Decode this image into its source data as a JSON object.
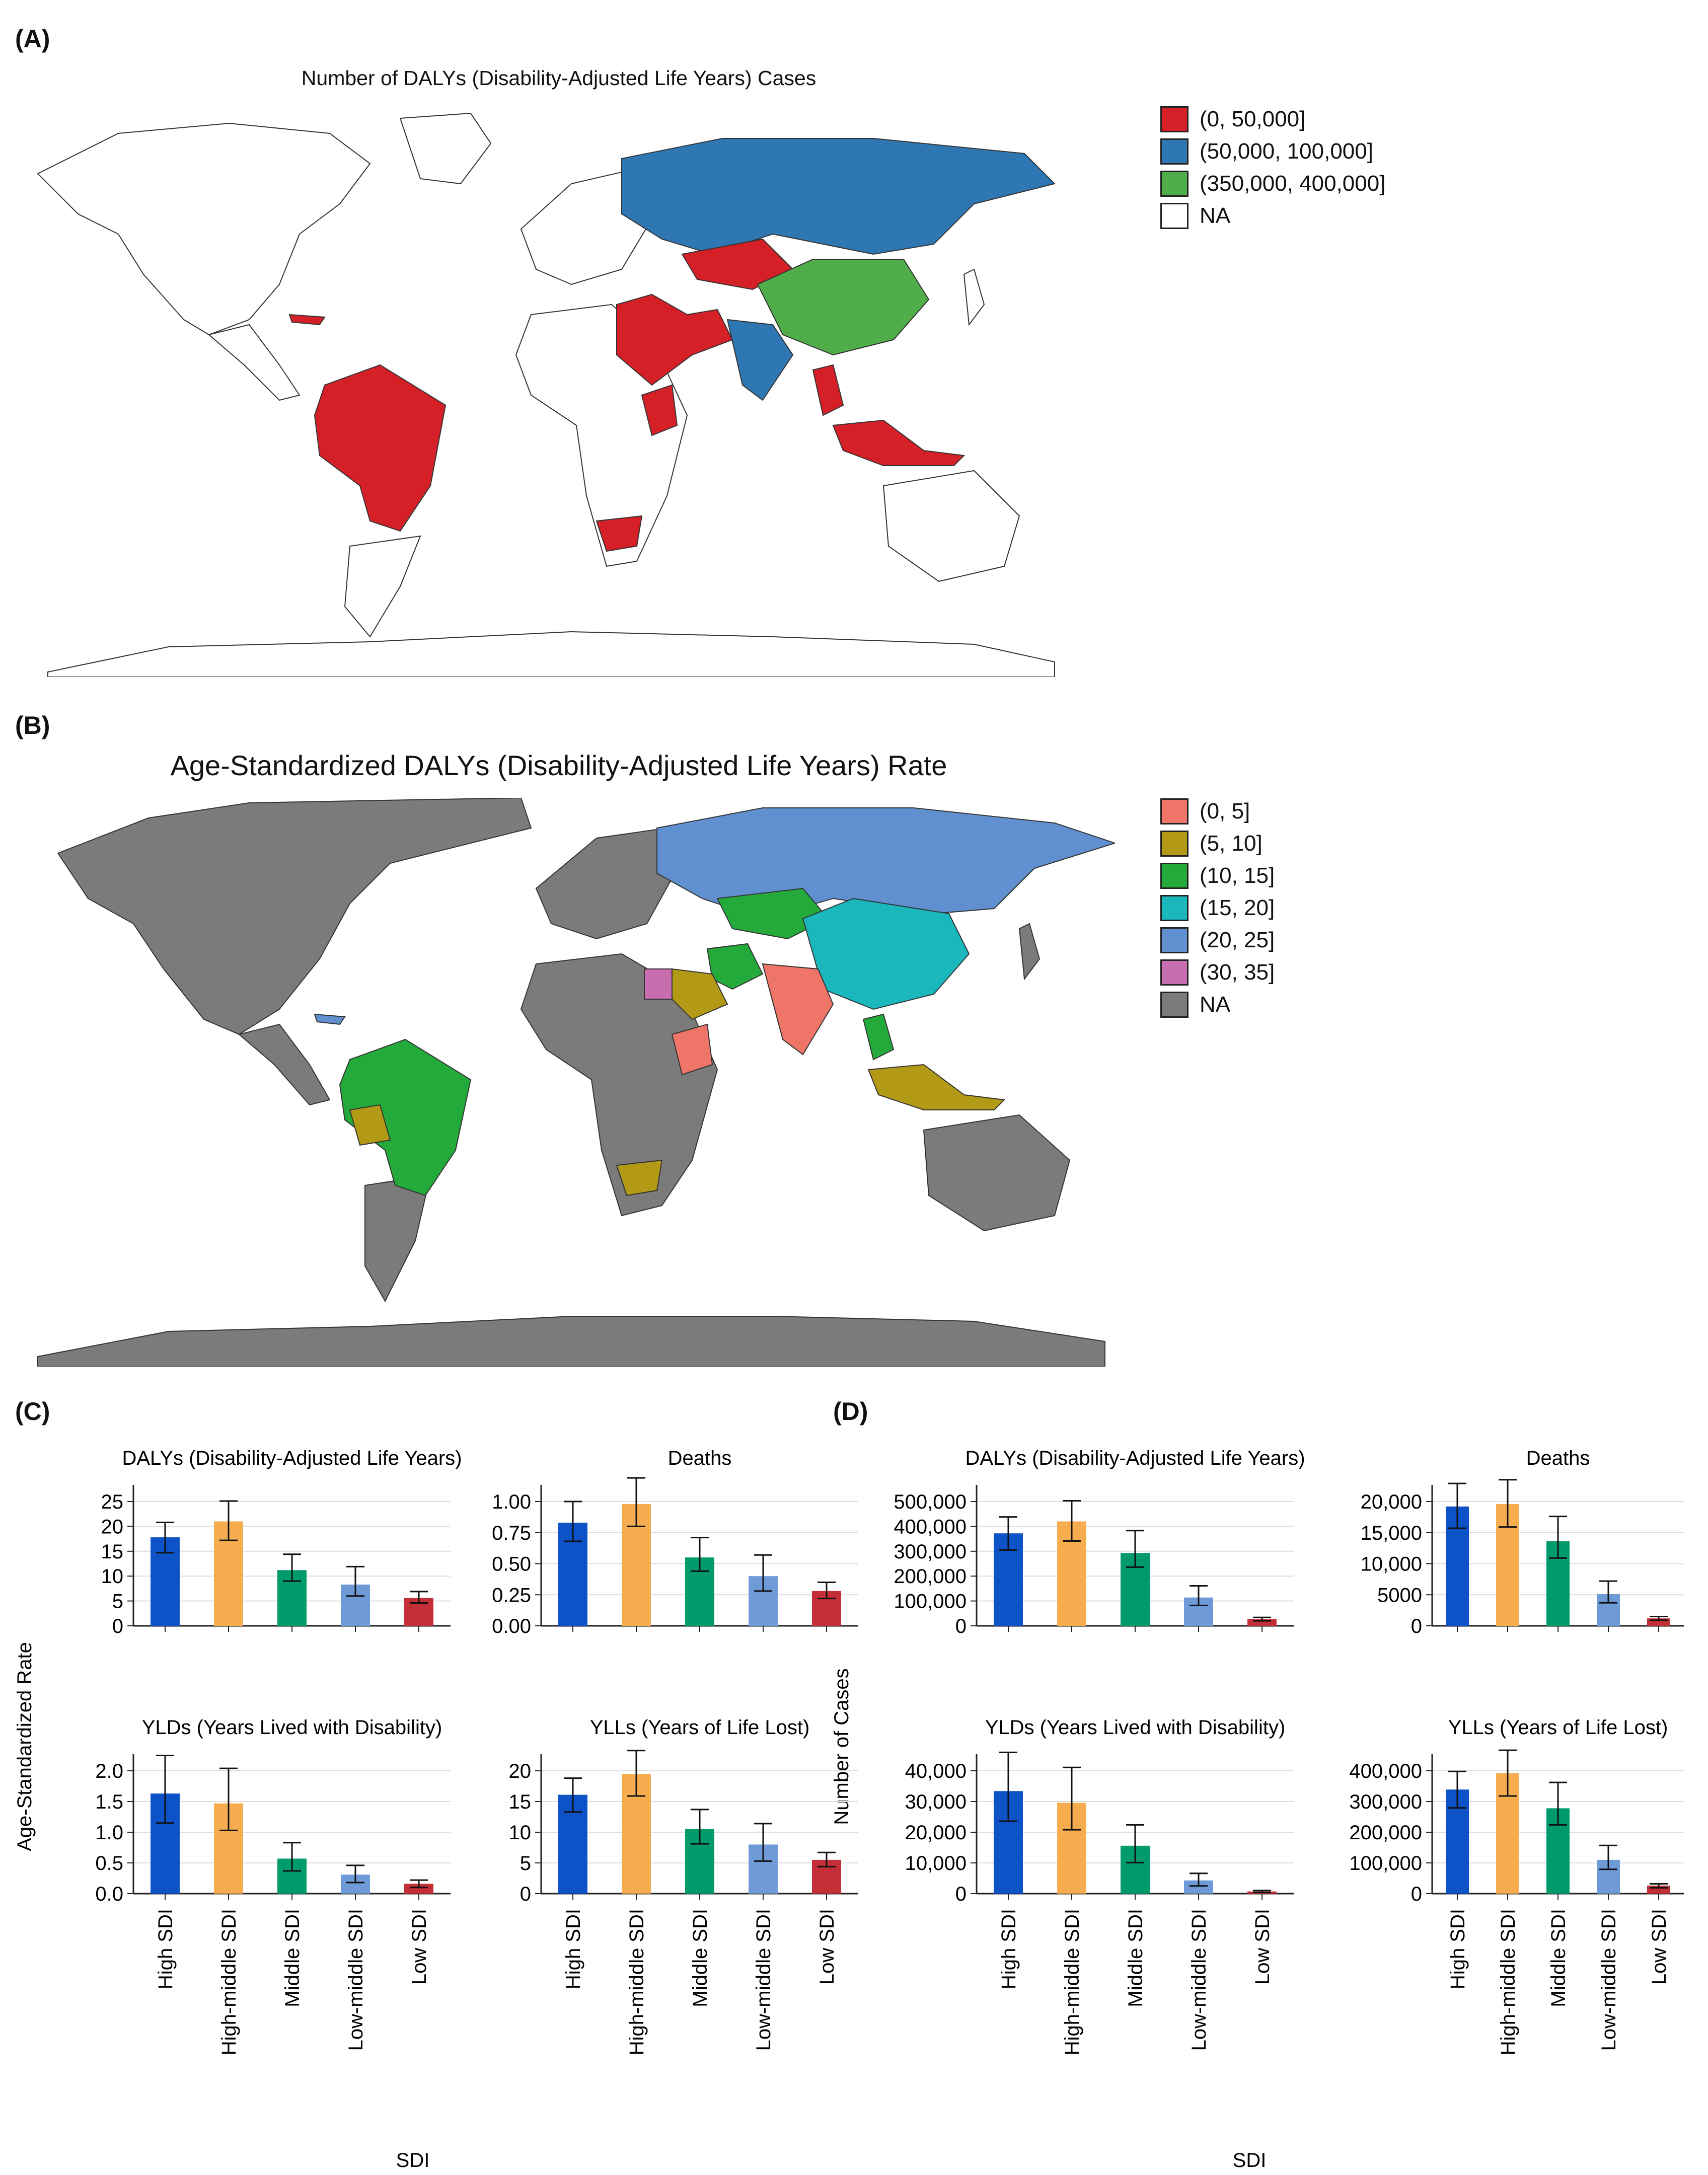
{
  "panels": {
    "A": "(A)",
    "B": "(B)",
    "C": "(C)",
    "D": "(D)"
  },
  "map_a": {
    "title": "Number of DALYs (Disability-Adjusted Life Years) Cases",
    "ocean_color": "#ffffff",
    "land_default": "#ffffff",
    "legend": [
      {
        "label": "(0, 50,000]",
        "color": "#d62027"
      },
      {
        "label": "(50,000, 100,000]",
        "color": "#2f77b3"
      },
      {
        "label": "(350,000, 400,000]",
        "color": "#4fae4a"
      },
      {
        "label": "NA",
        "color": "#ffffff"
      }
    ]
  },
  "map_b": {
    "title": "Age-Standardized DALYs (Disability-Adjusted Life Years) Rate",
    "land_default": "#7b7b7b",
    "legend": [
      {
        "label": "(0, 5]",
        "color": "#ef7569"
      },
      {
        "label": "(5, 10]",
        "color": "#b39a16"
      },
      {
        "label": "(10, 15]",
        "color": "#23aa3a"
      },
      {
        "label": "(15, 20]",
        "color": "#1ab8bd"
      },
      {
        "label": "(20, 25]",
        "color": "#6190d0"
      },
      {
        "label": "(30, 35]",
        "color": "#c86db0"
      },
      {
        "label": "NA",
        "color": "#7b7b7b"
      }
    ]
  },
  "bar_colors": [
    "#0e52c8",
    "#f5ad4f",
    "#009a6b",
    "#6f9ad8",
    "#c42e36"
  ],
  "groups": {
    "C": {
      "ylabel": "Age-Standardized Rate",
      "xlabel": "SDI"
    },
    "D": {
      "ylabel": "Number of Cases",
      "xlabel": "SDI"
    }
  },
  "chart_data": [
    {
      "type": "bar",
      "group": "C",
      "title": "DALYs (Disability-Adjusted Life Years)",
      "categories": [
        "High SDI",
        "High-middle SDI",
        "Middle SDI",
        "Low-middle SDI",
        "Low SDI"
      ],
      "values": [
        17.8,
        21.0,
        11.2,
        8.3,
        5.6
      ],
      "error_low": [
        14.7,
        17.2,
        9.0,
        6.0,
        4.6
      ],
      "error_high": [
        20.8,
        25.1,
        14.4,
        11.9,
        6.9
      ],
      "ylim": [
        0,
        25
      ],
      "yticks": [
        "0",
        "5",
        "10",
        "15",
        "20",
        "25"
      ],
      "ytick_values": [
        0,
        5,
        10,
        15,
        20,
        25
      ]
    },
    {
      "type": "bar",
      "group": "C",
      "title": "Deaths",
      "categories": [
        "High SDI",
        "High-middle SDI",
        "Middle SDI",
        "Low-middle SDI",
        "Low SDI"
      ],
      "values": [
        0.83,
        0.98,
        0.55,
        0.4,
        0.28
      ],
      "error_low": [
        0.68,
        0.8,
        0.44,
        0.28,
        0.22
      ],
      "error_high": [
        1.0,
        1.19,
        0.71,
        0.57,
        0.35
      ],
      "ylim": [
        0,
        1.0
      ],
      "yticks": [
        "0.00",
        "0.25",
        "0.50",
        "0.75",
        "1.00"
      ],
      "ytick_values": [
        0,
        0.25,
        0.5,
        0.75,
        1.0
      ]
    },
    {
      "type": "bar",
      "group": "C",
      "title": "YLDs (Years Lived with Disability)",
      "categories": [
        "High SDI",
        "High-middle SDI",
        "Middle SDI",
        "Low-middle SDI",
        "Low SDI"
      ],
      "values": [
        1.63,
        1.47,
        0.57,
        0.31,
        0.16
      ],
      "error_low": [
        1.15,
        1.03,
        0.37,
        0.18,
        0.1
      ],
      "error_high": [
        2.25,
        2.04,
        0.83,
        0.46,
        0.22
      ],
      "ylim": [
        0,
        2.0
      ],
      "yticks": [
        "0.0",
        "0.5",
        "1.0",
        "1.5",
        "2.0"
      ],
      "ytick_values": [
        0,
        0.5,
        1.0,
        1.5,
        2.0
      ]
    },
    {
      "type": "bar",
      "group": "C",
      "title": "YLLs (Years of Life Lost)",
      "categories": [
        "High SDI",
        "High-middle SDI",
        "Middle SDI",
        "Low-middle SDI",
        "Low SDI"
      ],
      "values": [
        16.1,
        19.5,
        10.5,
        8.0,
        5.5
      ],
      "error_low": [
        13.3,
        15.9,
        8.1,
        5.3,
        4.4
      ],
      "error_high": [
        18.8,
        23.3,
        13.7,
        11.4,
        6.7
      ],
      "ylim": [
        0,
        20
      ],
      "yticks": [
        "0",
        "5",
        "10",
        "15",
        "20"
      ],
      "ytick_values": [
        0,
        5,
        10,
        15,
        20
      ]
    },
    {
      "type": "bar",
      "group": "D",
      "title": "DALYs (Disability-Adjusted Life Years)",
      "categories": [
        "High SDI",
        "High-middle SDI",
        "Middle SDI",
        "Low-middle SDI",
        "Low SDI"
      ],
      "values": [
        372000,
        420000,
        293000,
        114000,
        27000
      ],
      "error_low": [
        305000,
        341000,
        236000,
        82000,
        20000
      ],
      "error_high": [
        438000,
        503000,
        383000,
        161000,
        34000
      ],
      "ylim": [
        0,
        500000
      ],
      "yticks": [
        "0",
        "100,000",
        "200,000",
        "300,000",
        "400,000",
        "500,000"
      ],
      "ytick_values": [
        0,
        100000,
        200000,
        300000,
        400000,
        500000
      ]
    },
    {
      "type": "bar",
      "group": "D",
      "title": "Deaths",
      "categories": [
        "High SDI",
        "High-middle SDI",
        "Middle SDI",
        "Low-middle SDI",
        "Low SDI"
      ],
      "values": [
        19200,
        19600,
        13600,
        5100,
        1200
      ],
      "error_low": [
        15700,
        15900,
        10900,
        3700,
        900
      ],
      "error_high": [
        22900,
        23500,
        17600,
        7200,
        1500
      ],
      "ylim": [
        0,
        20000
      ],
      "yticks": [
        "0",
        "5000",
        "10,000",
        "15,000",
        "20,000"
      ],
      "ytick_values": [
        0,
        5000,
        10000,
        15000,
        20000
      ]
    },
    {
      "type": "bar",
      "group": "D",
      "title": "YLDs (Years Lived with Disability)",
      "categories": [
        "High SDI",
        "High-middle SDI",
        "Middle SDI",
        "Low-middle SDI",
        "Low SDI"
      ],
      "values": [
        33400,
        29600,
        15600,
        4300,
        700
      ],
      "error_low": [
        23600,
        20800,
        10100,
        2500,
        400
      ],
      "error_high": [
        46000,
        41100,
        22400,
        6600,
        1000
      ],
      "ylim": [
        0,
        40000
      ],
      "yticks": [
        "0",
        "10,000",
        "20,000",
        "30,000",
        "40,000"
      ],
      "ytick_values": [
        0,
        10000,
        20000,
        30000,
        40000
      ]
    },
    {
      "type": "bar",
      "group": "D",
      "title": "YLLs (Years of Life Lost)",
      "categories": [
        "High SDI",
        "High-middle SDI",
        "Middle SDI",
        "Low-middle SDI",
        "Low SDI"
      ],
      "values": [
        339000,
        393000,
        278000,
        110000,
        26000
      ],
      "error_low": [
        279000,
        318000,
        224000,
        79000,
        19000
      ],
      "error_high": [
        398000,
        467000,
        362000,
        157000,
        32000
      ],
      "ylim": [
        0,
        400000
      ],
      "yticks": [
        "0",
        "100,000",
        "200,000",
        "300,000",
        "400,000"
      ],
      "ytick_values": [
        0,
        100000,
        200000,
        300000,
        400000
      ]
    }
  ]
}
